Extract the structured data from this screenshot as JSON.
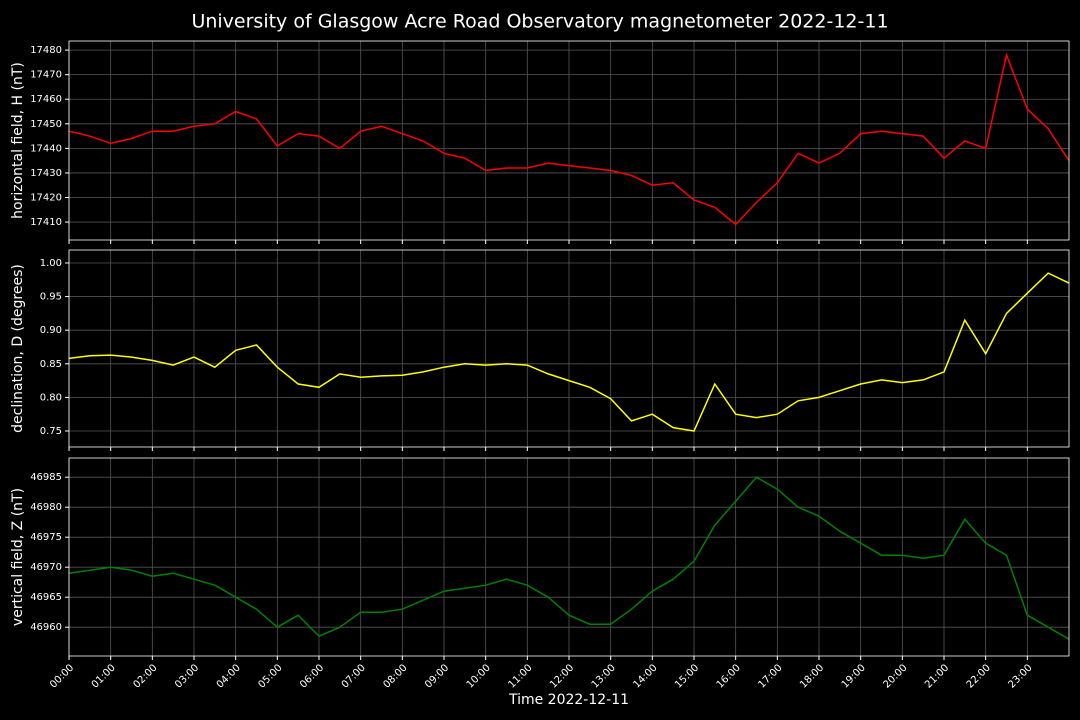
{
  "chart_data": [
    {
      "type": "line",
      "title": "University of Glasgow Acre Road Observatory magnetometer 2022-12-11",
      "ylabel": "horizontal field, H (nT)",
      "x": [
        0,
        0.5,
        1,
        1.5,
        2,
        2.5,
        3,
        3.5,
        4,
        4.5,
        5,
        5.5,
        6,
        6.5,
        7,
        7.5,
        8,
        8.5,
        9,
        9.5,
        10,
        10.5,
        11,
        11.5,
        12,
        12.5,
        13,
        13.5,
        14,
        14.5,
        15,
        15.5,
        16,
        16.5,
        17,
        17.5,
        18,
        18.5,
        19,
        19.5,
        20,
        20.5,
        21,
        21.5,
        22,
        22.5,
        23,
        23.5,
        24
      ],
      "series": [
        {
          "name": "H",
          "color": "#ff0000",
          "values": [
            17447,
            17445,
            17442,
            17444,
            17447,
            17447,
            17449,
            17450,
            17455,
            17452,
            17441,
            17446,
            17445,
            17440,
            17447,
            17449,
            17446,
            17443,
            17438,
            17436,
            17431,
            17432,
            17432,
            17434,
            17433,
            17432,
            17431,
            17429,
            17425,
            17426,
            17419,
            17416,
            17409,
            17418,
            17426,
            17438,
            17434,
            17438,
            17446,
            17447,
            17446,
            17445,
            17436,
            17443,
            17440,
            17478,
            17456,
            17448,
            17435
          ]
        }
      ],
      "xlim": [
        0,
        24
      ],
      "xticks": [
        0,
        1,
        2,
        3,
        4,
        5,
        6,
        7,
        8,
        9,
        10,
        11,
        12,
        13,
        14,
        15,
        16,
        17,
        18,
        19,
        20,
        21,
        22,
        23
      ],
      "ylim": [
        17402.7,
        17483.7
      ],
      "yticks": [
        17410,
        17420,
        17430,
        17440,
        17450,
        17460,
        17470,
        17480
      ],
      "grid": true
    },
    {
      "type": "line",
      "ylabel": "declination, D (degrees)",
      "x": [
        0,
        0.5,
        1,
        1.5,
        2,
        2.5,
        3,
        3.5,
        4,
        4.5,
        5,
        5.5,
        6,
        6.5,
        7,
        7.5,
        8,
        8.5,
        9,
        9.5,
        10,
        10.5,
        11,
        11.5,
        12,
        12.5,
        13,
        13.5,
        14,
        14.5,
        15,
        15.5,
        16,
        16.5,
        17,
        17.5,
        18,
        18.5,
        19,
        19.5,
        20,
        20.5,
        21,
        21.5,
        22,
        22.5,
        23,
        23.5,
        24
      ],
      "series": [
        {
          "name": "D",
          "color": "#ffff00",
          "values": [
            0.858,
            0.862,
            0.863,
            0.86,
            0.855,
            0.848,
            0.86,
            0.845,
            0.87,
            0.878,
            0.845,
            0.82,
            0.815,
            0.835,
            0.83,
            0.832,
            0.833,
            0.838,
            0.845,
            0.85,
            0.848,
            0.85,
            0.848,
            0.835,
            0.825,
            0.815,
            0.798,
            0.765,
            0.775,
            0.755,
            0.75,
            0.82,
            0.775,
            0.77,
            0.775,
            0.795,
            0.8,
            0.81,
            0.82,
            0.826,
            0.822,
            0.826,
            0.838,
            0.915,
            0.865,
            0.925,
            0.955,
            0.985,
            0.97
          ]
        }
      ],
      "xlim": [
        0,
        24
      ],
      "xticks": [
        0,
        1,
        2,
        3,
        4,
        5,
        6,
        7,
        8,
        9,
        10,
        11,
        12,
        13,
        14,
        15,
        16,
        17,
        18,
        19,
        20,
        21,
        22,
        23
      ],
      "ylim": [
        0.7262,
        1.0193
      ],
      "yticks": [
        0.75,
        {
          "value": 0.8,
          "label": "0.80"
        },
        0.85,
        {
          "value": 0.9,
          "label": "0.90"
        },
        0.95,
        {
          "value": 1,
          "label": "1.00"
        }
      ],
      "grid": true
    },
    {
      "type": "line",
      "ylabel": "vertical field, Z (nT)",
      "xlabel": "Time 2022-12-11",
      "x": [
        0,
        0.5,
        1,
        1.5,
        2,
        2.5,
        3,
        3.5,
        4,
        4.5,
        5,
        5.5,
        6,
        6.5,
        7,
        7.5,
        8,
        8.5,
        9,
        9.5,
        10,
        10.5,
        11,
        11.5,
        12,
        12.5,
        13,
        13.5,
        14,
        14.5,
        15,
        15.5,
        16,
        16.5,
        17,
        17.5,
        18,
        18.5,
        19,
        19.5,
        20,
        20.5,
        21,
        21.5,
        22,
        22.5,
        23,
        23.5,
        24
      ],
      "series": [
        {
          "name": "Z",
          "color": "#008000",
          "values": [
            46969,
            46969.5,
            46970,
            46969.5,
            46968.5,
            46969,
            46968,
            46967,
            46965,
            46963,
            46960,
            46962,
            46958.5,
            46960,
            46962.5,
            46962.5,
            46963,
            46964.5,
            46966,
            46966.5,
            46967,
            46968,
            46967,
            46965,
            46962,
            46960.5,
            46960.5,
            46963,
            46966,
            46968,
            46971,
            46977,
            46981,
            46985,
            46983,
            46980,
            46978.5,
            46976,
            46974,
            46972,
            46972,
            46971.5,
            46972,
            46978,
            46974,
            46972,
            46962,
            46960,
            46958
          ]
        }
      ],
      "xlim": [
        0,
        24
      ],
      "xticks": [
        {
          "value": 0,
          "label": "00:00"
        },
        {
          "value": 1,
          "label": "01:00"
        },
        {
          "value": 2,
          "label": "02:00"
        },
        {
          "value": 3,
          "label": "03:00"
        },
        {
          "value": 4,
          "label": "04:00"
        },
        {
          "value": 5,
          "label": "05:00"
        },
        {
          "value": 6,
          "label": "06:00"
        },
        {
          "value": 7,
          "label": "07:00"
        },
        {
          "value": 8,
          "label": "08:00"
        },
        {
          "value": 9,
          "label": "09:00"
        },
        {
          "value": 10,
          "label": "10:00"
        },
        {
          "value": 11,
          "label": "11:00"
        },
        {
          "value": 12,
          "label": "12:00"
        },
        {
          "value": 13,
          "label": "13:00"
        },
        {
          "value": 14,
          "label": "14:00"
        },
        {
          "value": 15,
          "label": "15:00"
        },
        {
          "value": 16,
          "label": "16:00"
        },
        {
          "value": 17,
          "label": "17:00"
        },
        {
          "value": 18,
          "label": "18:00"
        },
        {
          "value": 19,
          "label": "19:00"
        },
        {
          "value": 20,
          "label": "20:00"
        },
        {
          "value": 21,
          "label": "21:00"
        },
        {
          "value": 22,
          "label": "22:00"
        },
        {
          "value": 23,
          "label": "23:00"
        }
      ],
      "ylim": [
        46955.2,
        46988.2
      ],
      "yticks": [
        46960,
        46965,
        46970,
        46975,
        46980,
        46985
      ],
      "grid": true
    }
  ]
}
